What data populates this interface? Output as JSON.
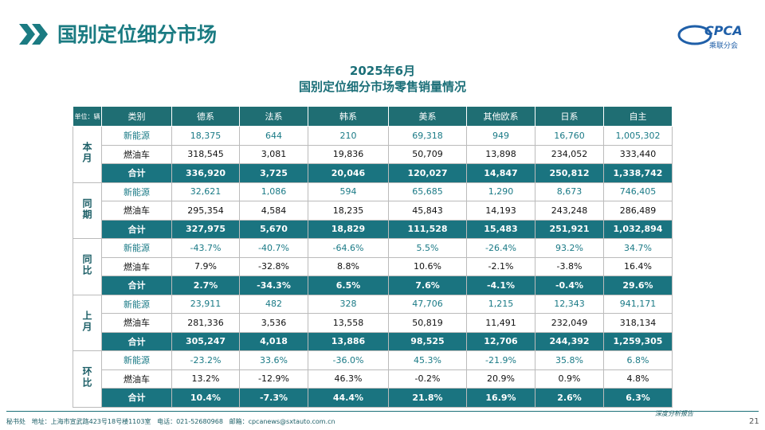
{
  "header": {
    "title": "国别定位细分市场",
    "logo": "CPCA",
    "logo_sub": "乘联分会"
  },
  "table": {
    "title_lines": [
      "2025年6月",
      "国别定位细分市场零售销量情况"
    ],
    "unit": "单位：辆",
    "columns": [
      "类别",
      "德系",
      "法系",
      "韩系",
      "美系",
      "其他欧系",
      "日系",
      "自主"
    ],
    "groups": [
      {
        "label": "本月",
        "rows": [
          [
            "新能源",
            "18,375",
            "644",
            "210",
            "69,318",
            "949",
            "16,760",
            "1,005,302"
          ],
          [
            "燃油车",
            "318,545",
            "3,081",
            "19,836",
            "50,709",
            "13,898",
            "234,052",
            "333,440"
          ],
          [
            "合计",
            "336,920",
            "3,725",
            "20,046",
            "120,027",
            "14,847",
            "250,812",
            "1,338,742"
          ]
        ]
      },
      {
        "label": "同期",
        "rows": [
          [
            "新能源",
            "32,621",
            "1,086",
            "594",
            "65,685",
            "1,290",
            "8,673",
            "746,405"
          ],
          [
            "燃油车",
            "295,354",
            "4,584",
            "18,235",
            "45,843",
            "14,193",
            "243,248",
            "286,489"
          ],
          [
            "合计",
            "327,975",
            "5,670",
            "18,829",
            "111,528",
            "15,483",
            "251,921",
            "1,032,894"
          ]
        ]
      },
      {
        "label": "同比",
        "rows": [
          [
            "新能源",
            "-43.7%",
            "-40.7%",
            "-64.6%",
            "5.5%",
            "-26.4%",
            "93.2%",
            "34.7%"
          ],
          [
            "燃油车",
            "7.9%",
            "-32.8%",
            "8.8%",
            "10.6%",
            "-2.1%",
            "-3.8%",
            "16.4%"
          ],
          [
            "合计",
            "2.7%",
            "-34.3%",
            "6.5%",
            "7.6%",
            "-4.1%",
            "-0.4%",
            "29.6%"
          ]
        ]
      },
      {
        "label": "上月",
        "rows": [
          [
            "新能源",
            "23,911",
            "482",
            "328",
            "47,706",
            "1,215",
            "12,343",
            "941,171"
          ],
          [
            "燃油车",
            "281,336",
            "3,536",
            "13,558",
            "50,819",
            "11,491",
            "232,049",
            "318,134"
          ],
          [
            "合计",
            "305,247",
            "4,018",
            "13,886",
            "98,525",
            "12,706",
            "244,392",
            "1,259,305"
          ]
        ]
      },
      {
        "label": "环比",
        "rows": [
          [
            "新能源",
            "-23.2%",
            "33.6%",
            "-36.0%",
            "45.3%",
            "-21.9%",
            "35.8%",
            "6.8%"
          ],
          [
            "燃油车",
            "13.2%",
            "-12.9%",
            "46.3%",
            "-0.2%",
            "20.9%",
            "0.9%",
            "4.8%"
          ],
          [
            "合计",
            "10.4%",
            "-7.3%",
            "44.4%",
            "21.8%",
            "16.9%",
            "2.6%",
            "6.3%"
          ]
        ]
      }
    ]
  },
  "footer": {
    "address": "秘书处   地址：上海市宣武路423号18号楼1103室   电话：021-52680968   邮箱：cpcanews@sxtauto.com.cn",
    "tagline": "深度分析报告",
    "page": "21"
  }
}
